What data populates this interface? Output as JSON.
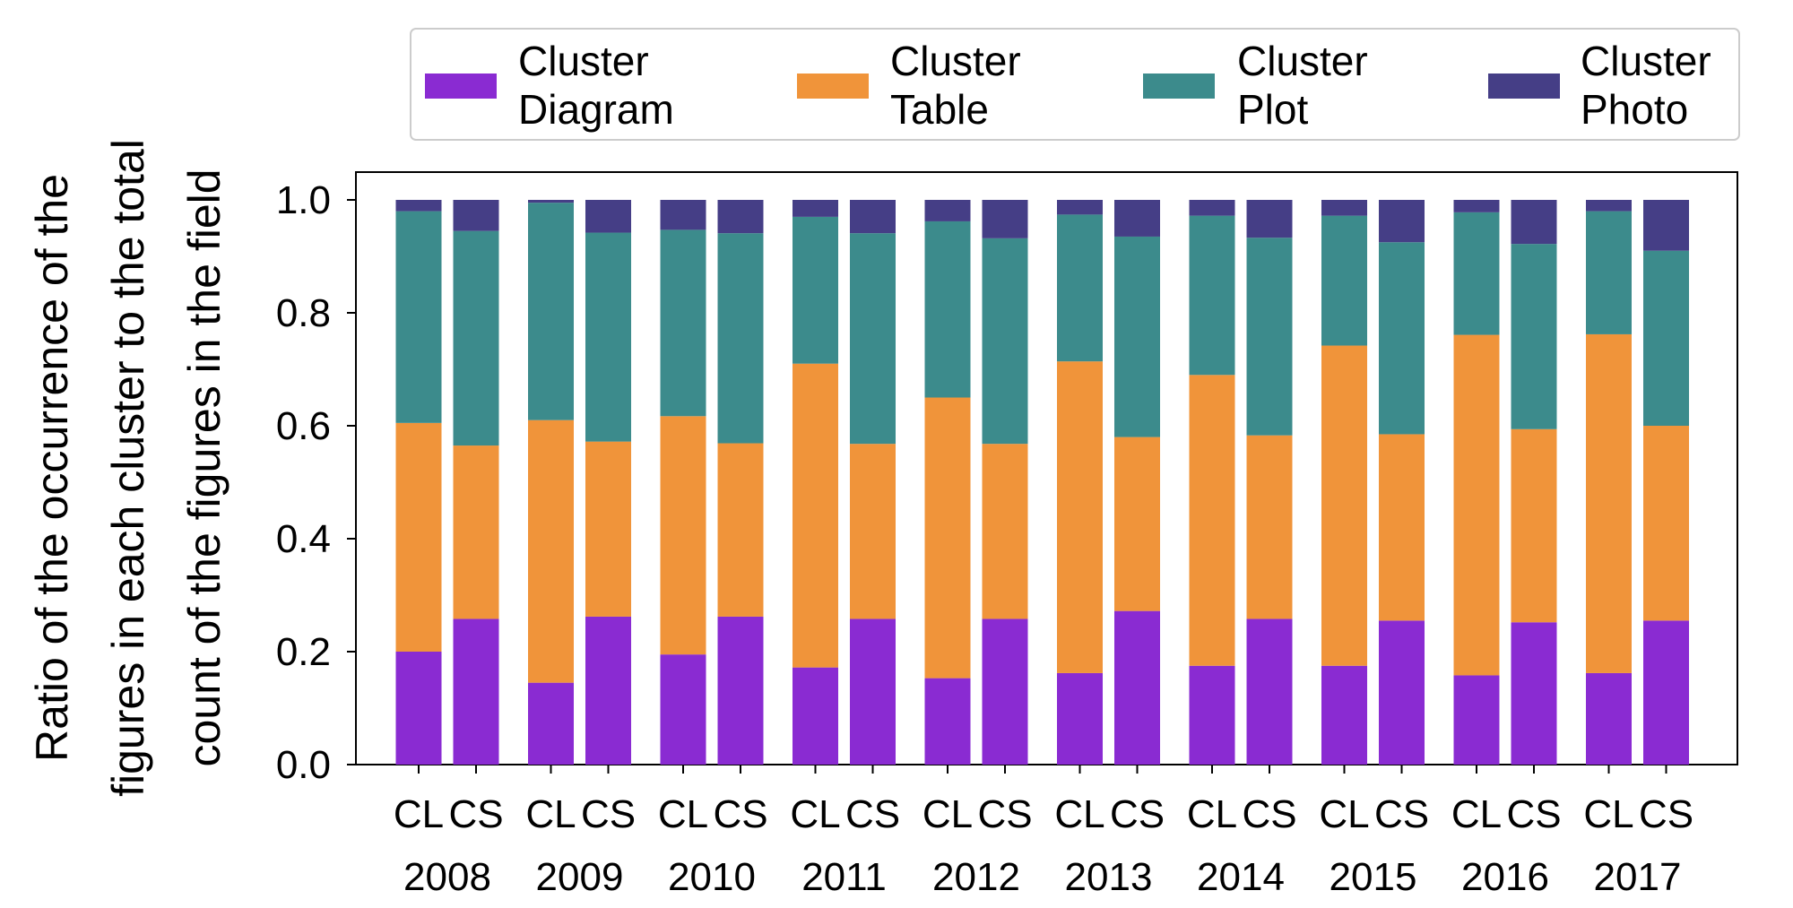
{
  "chart_data": {
    "type": "bar",
    "stacked": true,
    "title": "",
    "xlabel": "",
    "ylabel_lines": [
      "Ratio of the occurrence of the",
      "figures in each cluster to the total",
      "count of the figures in the field"
    ],
    "ylim": [
      0,
      1.05
    ],
    "yticks": [
      "0.0",
      "0.2",
      "0.4",
      "0.6",
      "0.8",
      "1.0"
    ],
    "ytick_values": [
      0,
      0.2,
      0.4,
      0.6,
      0.8,
      1.0
    ],
    "grid": false,
    "legend_position": "top",
    "years": [
      "2008",
      "2009",
      "2010",
      "2011",
      "2012",
      "2013",
      "2014",
      "2015",
      "2016",
      "2017"
    ],
    "subgroups": [
      "CL",
      "CS"
    ],
    "series": [
      {
        "name_lines": [
          "Cluster",
          "Diagram"
        ],
        "color": "#8a2bd2",
        "CL": [
          0.2,
          0.145,
          0.195,
          0.172,
          0.153,
          0.162,
          0.175,
          0.175,
          0.158,
          0.162
        ],
        "CS": [
          0.258,
          0.262,
          0.262,
          0.258,
          0.258,
          0.272,
          0.258,
          0.255,
          0.252,
          0.255
        ]
      },
      {
        "name_lines": [
          "Cluster",
          "Table"
        ],
        "color": "#f0943a",
        "CL": [
          0.405,
          0.465,
          0.422,
          0.538,
          0.497,
          0.552,
          0.515,
          0.567,
          0.603,
          0.6
        ],
        "CS": [
          0.307,
          0.31,
          0.307,
          0.31,
          0.31,
          0.308,
          0.325,
          0.33,
          0.342,
          0.345
        ]
      },
      {
        "name_lines": [
          "Cluster",
          "Plot"
        ],
        "color": "#3c8b8c",
        "CL": [
          0.375,
          0.385,
          0.33,
          0.26,
          0.312,
          0.26,
          0.282,
          0.23,
          0.217,
          0.218
        ],
        "CS": [
          0.38,
          0.37,
          0.372,
          0.373,
          0.364,
          0.355,
          0.35,
          0.34,
          0.328,
          0.31
        ]
      },
      {
        "name_lines": [
          "Cluster",
          "Photo"
        ],
        "color": "#453e86",
        "CL": [
          0.02,
          0.005,
          0.053,
          0.03,
          0.038,
          0.026,
          0.028,
          0.028,
          0.022,
          0.02
        ],
        "CS": [
          0.055,
          0.058,
          0.059,
          0.059,
          0.068,
          0.065,
          0.067,
          0.075,
          0.078,
          0.09
        ]
      }
    ]
  }
}
